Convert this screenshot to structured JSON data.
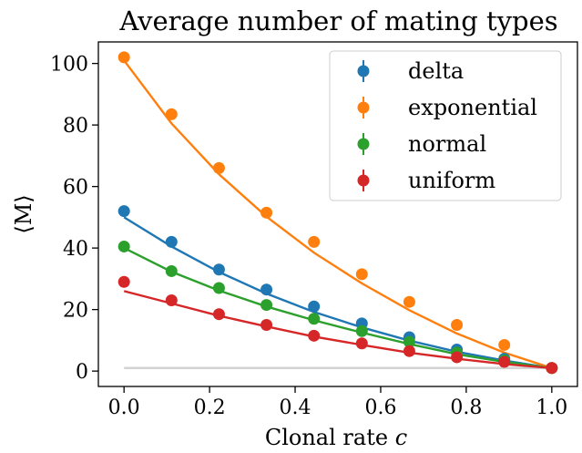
{
  "chart_data": {
    "type": "scatter",
    "title": "Average number of mating types",
    "xlabel_text": "Clonal rate ",
    "xlabel_var": "c",
    "ylabel": "⟨M⟩",
    "xlim": [
      -0.06,
      1.06
    ],
    "ylim": [
      -5,
      107
    ],
    "xticks": [
      0.0,
      0.2,
      0.4,
      0.6,
      0.8,
      1.0
    ],
    "xtick_labels": [
      "0.0",
      "0.2",
      "0.4",
      "0.6",
      "0.8",
      "1.0"
    ],
    "yticks": [
      0,
      20,
      40,
      60,
      80,
      100
    ],
    "ytick_labels": [
      "0",
      "20",
      "40",
      "60",
      "80",
      "100"
    ],
    "grid": false,
    "legend_position": "top-right",
    "x": [
      0.0,
      0.111,
      0.222,
      0.333,
      0.444,
      0.556,
      0.667,
      0.778,
      0.889,
      1.0
    ],
    "series": [
      {
        "name": "delta",
        "color": "#1f77b4",
        "values": [
          52.0,
          42.0,
          33.0,
          26.5,
          21.0,
          15.5,
          11.0,
          7.0,
          4.0,
          1.0
        ],
        "fit": [
          50.0,
          40.5,
          32.2,
          25.2,
          19.2,
          14.2,
          9.9,
          6.3,
          3.4,
          1.0
        ]
      },
      {
        "name": "exponential",
        "color": "#ff7f0e",
        "values": [
          102.0,
          83.5,
          66.0,
          51.5,
          42.0,
          31.5,
          22.5,
          15.0,
          8.5,
          1.0
        ],
        "fit": [
          101.0,
          80.5,
          64.0,
          50.2,
          38.5,
          28.5,
          19.8,
          12.2,
          6.0,
          1.0
        ]
      },
      {
        "name": "normal",
        "color": "#2ca02c",
        "values": [
          40.5,
          32.5,
          27.0,
          21.5,
          17.0,
          13.0,
          9.5,
          6.0,
          3.5,
          1.0
        ],
        "fit": [
          40.0,
          32.3,
          26.2,
          21.0,
          16.5,
          12.5,
          8.8,
          5.5,
          3.0,
          1.0
        ]
      },
      {
        "name": "uniform",
        "color": "#d62728",
        "values": [
          29.0,
          23.0,
          18.5,
          15.0,
          11.5,
          9.0,
          6.5,
          4.5,
          3.0,
          1.0
        ],
        "fit": [
          26.0,
          22.0,
          18.0,
          14.5,
          11.2,
          8.5,
          6.0,
          4.0,
          2.3,
          1.0
        ]
      }
    ],
    "baseline": {
      "value": 1.0,
      "color": "#d3d3d3"
    }
  }
}
